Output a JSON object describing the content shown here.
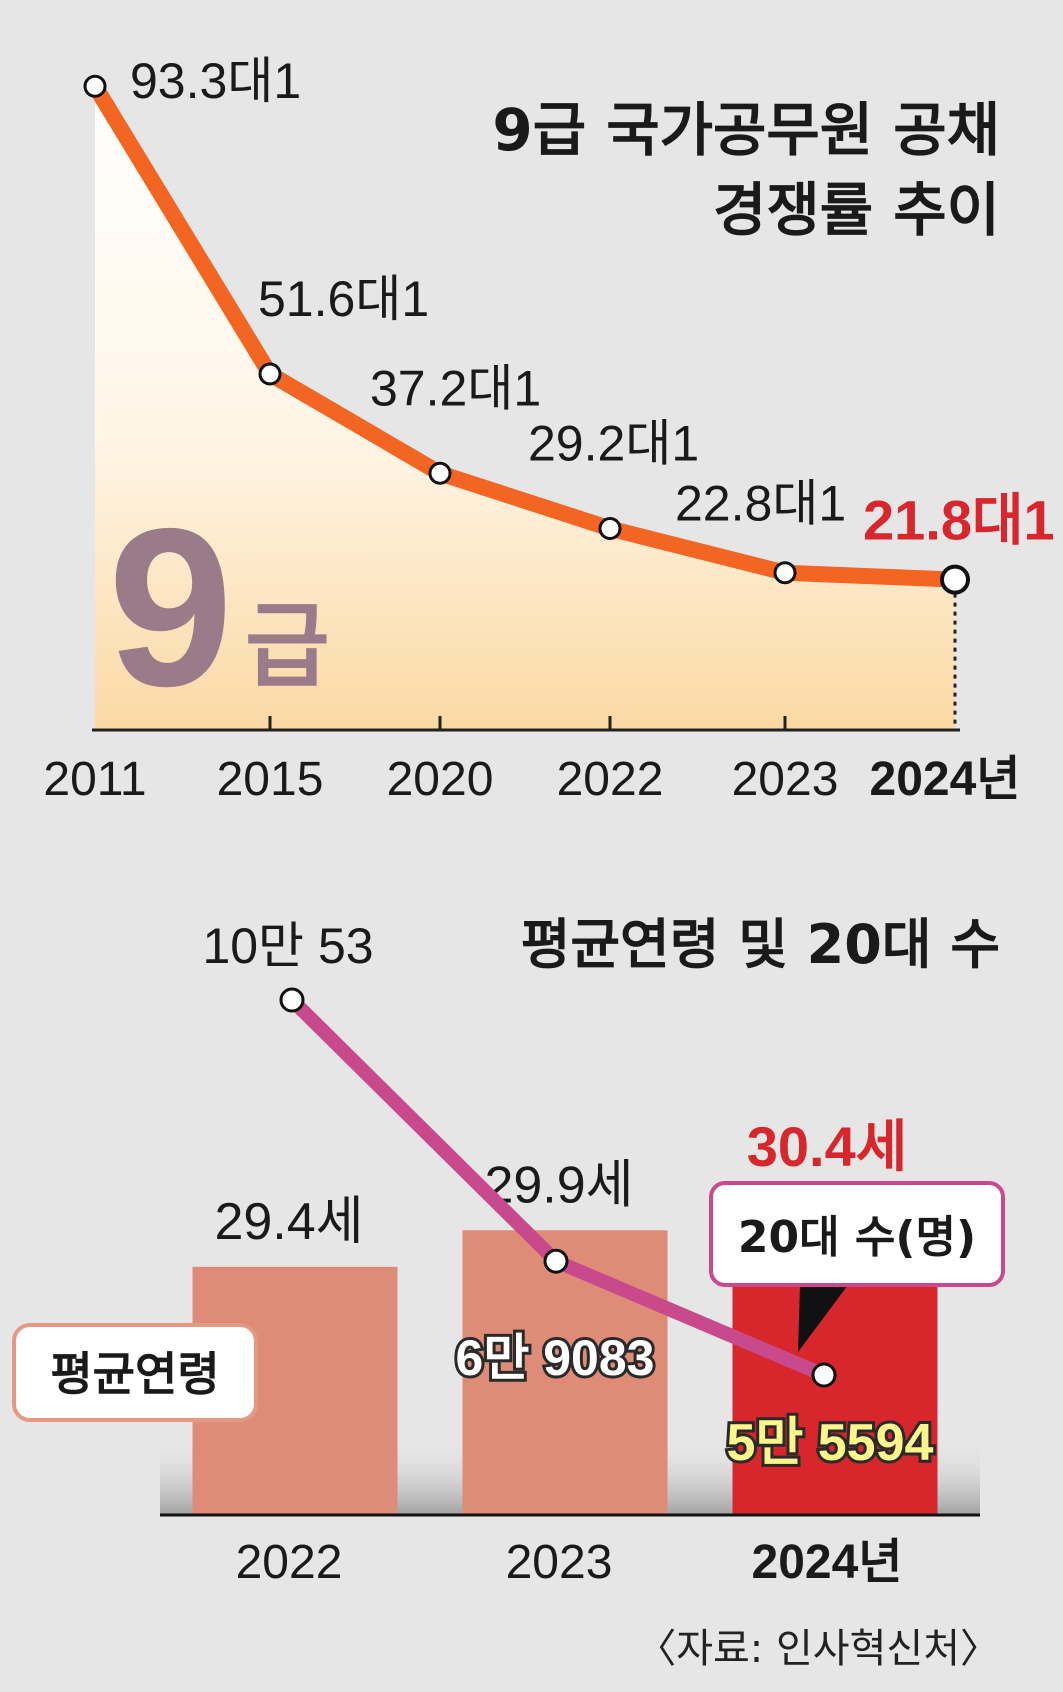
{
  "chart_data": [
    {
      "type": "line",
      "title": "9급 국가공무원 공채",
      "subtitle": "경쟁률 추이",
      "watermark_number": "9",
      "watermark_suffix": "급",
      "categories": [
        "2011",
        "2015",
        "2020",
        "2022",
        "2023",
        "2024년"
      ],
      "values": [
        93.3,
        51.6,
        37.2,
        29.2,
        22.8,
        21.8
      ],
      "data_labels": [
        "93.3대1",
        "51.6대1",
        "37.2대1",
        "29.2대1",
        "22.8대1",
        "21.8대1"
      ],
      "ylim": [
        0,
        100
      ],
      "highlight_index": 5,
      "colors": {
        "line": "#f26522",
        "highlight": "#d7262c",
        "fill_top": "#ffffff",
        "fill_bottom": "#fbd9a4"
      }
    },
    {
      "type": "bar",
      "title": "평균연령 및 20대 수",
      "categories": [
        "2022",
        "2023",
        "2024년"
      ],
      "series": [
        {
          "name": "평균연령",
          "values": [
            29.4,
            29.9,
            30.4
          ],
          "labels": [
            "29.4세",
            "29.9세",
            "30.4세"
          ]
        },
        {
          "name": "20대 수(명)",
          "values": [
            100053,
            69083,
            55594
          ],
          "labels": [
            "10만 53",
            "6만 9083",
            "5만 5594"
          ]
        }
      ],
      "ylim": [
        26,
        31
      ],
      "highlight_index": 2,
      "colors": {
        "bar": "#de8b78",
        "bar_highlight": "#d7262c",
        "line": "#c94a8c",
        "highlight_text": "#d7262c",
        "label_yellow": "#fff58a"
      }
    }
  ],
  "source": "〈자료: 인사혁신처〉"
}
